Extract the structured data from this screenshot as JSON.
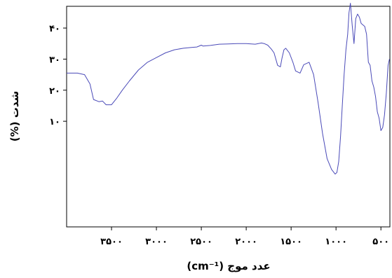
{
  "chart_data": {
    "type": "line",
    "title": "",
    "xlabel": "عدد موج (cm⁻¹)",
    "ylabel": "شدت (%)",
    "x_reversed": true,
    "xlim": [
      4000,
      400
    ],
    "ylim": [
      -24,
      47
    ],
    "grid": false,
    "legend": "none",
    "line_color": "#4a4ab8",
    "x_ticks": [
      {
        "value": 3500,
        "label": "۳۵۰۰"
      },
      {
        "value": 3000,
        "label": "۳۰۰۰"
      },
      {
        "value": 2500,
        "label": "۲۵۰۰"
      },
      {
        "value": 2000,
        "label": "۲۰۰۰"
      },
      {
        "value": 1500,
        "label": "۱۵۰۰"
      },
      {
        "value": 1000,
        "label": "۱۰۰۰"
      },
      {
        "value": 500,
        "label": "۵۰۰"
      }
    ],
    "y_ticks": [
      {
        "value": 10,
        "label": "۱۰"
      },
      {
        "value": 20,
        "label": "۲۰"
      },
      {
        "value": 30,
        "label": "۳۰"
      },
      {
        "value": 40,
        "label": "۴۰"
      }
    ],
    "series": [
      {
        "x": [
          4000,
          3880,
          3800,
          3740,
          3700,
          3640,
          3600,
          3560,
          3500,
          3440,
          3380,
          3300,
          3200,
          3100,
          3000,
          2900,
          2800,
          2700,
          2600,
          2550,
          2500,
          2480,
          2400,
          2300,
          2200,
          2100,
          2000,
          1900,
          1830,
          1800,
          1760,
          1720,
          1690,
          1650,
          1620,
          1600,
          1580,
          1560,
          1520,
          1480,
          1450,
          1400,
          1360,
          1300,
          1250,
          1200,
          1150,
          1100,
          1050,
          1010,
          990,
          970,
          950,
          930,
          910,
          890,
          870,
          855,
          840,
          820,
          800,
          780,
          760,
          740,
          720,
          700,
          680,
          660,
          640,
          620,
          600,
          580,
          560,
          540,
          520,
          500,
          480,
          460,
          440,
          420,
          405
        ],
        "y": [
          25.5,
          25.5,
          25,
          22,
          17,
          16.3,
          16.5,
          15.3,
          15.3,
          17.5,
          20,
          23,
          26.5,
          29,
          30.5,
          32,
          33,
          33.5,
          33.8,
          33.9,
          34.5,
          34.2,
          34.4,
          34.8,
          34.9,
          35,
          35,
          34.8,
          35.2,
          35,
          34.5,
          33.2,
          32,
          28,
          27.5,
          30.5,
          33,
          33.5,
          32,
          29,
          26.2,
          25.5,
          28.2,
          29,
          25,
          16,
          6,
          -2,
          -5.5,
          -7,
          -6.5,
          -3,
          5,
          15,
          25,
          33,
          38,
          45,
          48,
          41,
          35,
          43,
          44.5,
          43.5,
          41.5,
          41,
          40.5,
          38,
          29,
          28,
          23,
          21,
          18,
          13,
          11,
          7,
          8,
          12,
          19,
          28,
          30
        ]
      }
    ]
  }
}
